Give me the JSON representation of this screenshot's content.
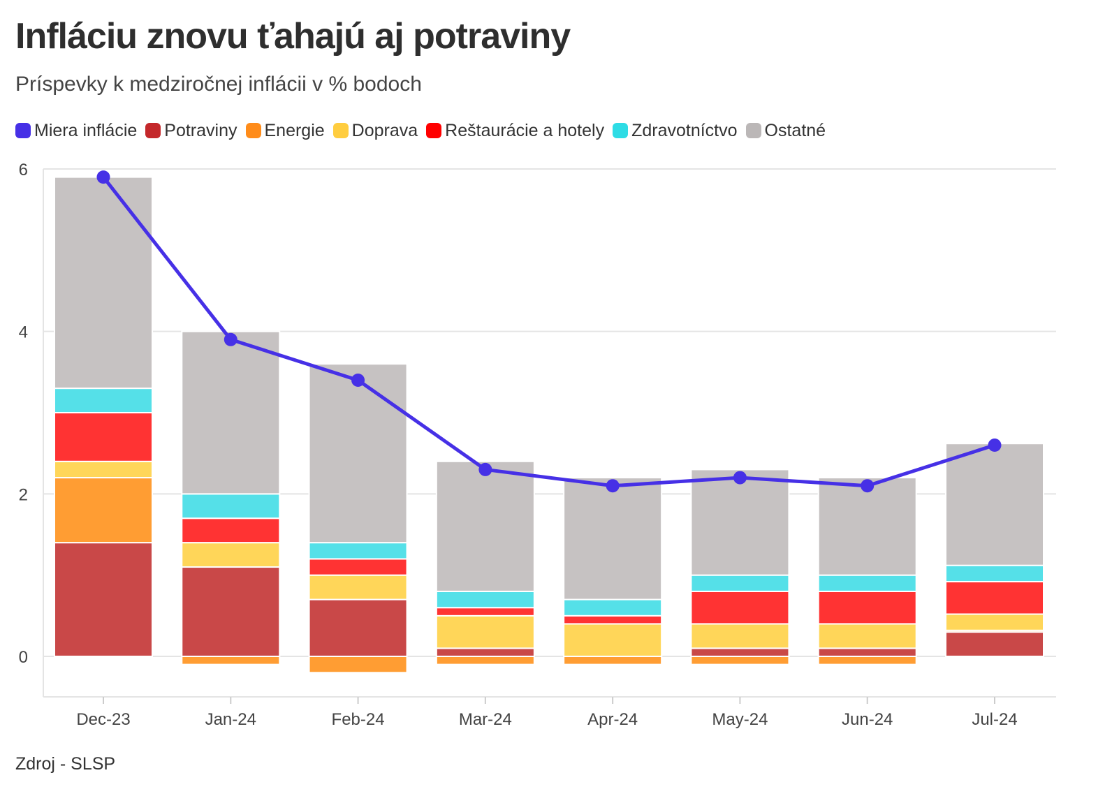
{
  "header": {
    "title": "Infláciu znovu ťahajú aj potraviny",
    "subtitle": "Príspevky k medziročnej inflácii v % bodoch"
  },
  "legend": [
    {
      "label": "Miera inflácie",
      "color": "#4630e6"
    },
    {
      "label": "Potraviny",
      "color": "#c4282b"
    },
    {
      "label": "Energie",
      "color": "#ff8c1a"
    },
    {
      "label": "Doprava",
      "color": "#ffcd3f"
    },
    {
      "label": "Reštaurácie a hotely",
      "color": "#ff0000"
    },
    {
      "label": "Zdravotníctvo",
      "color": "#2edce5"
    },
    {
      "label": "Ostatné",
      "color": "#bbb7b7"
    }
  ],
  "chart_data": {
    "type": "bar",
    "stacked": true,
    "title": "Infláciu znovu ťahajú aj potraviny",
    "subtitle": "Príspevky k medziročnej inflácii v % bodoch",
    "categories": [
      "Dec-23",
      "Jan-24",
      "Feb-24",
      "Mar-24",
      "Apr-24",
      "May-24",
      "Jun-24",
      "Jul-24"
    ],
    "ylim": [
      -0.5,
      6
    ],
    "yticks": [
      0,
      2,
      4,
      6
    ],
    "xlabel": "",
    "ylabel": "",
    "grid": true,
    "series": [
      {
        "name": "Potraviny",
        "values": [
          1.4,
          1.1,
          0.7,
          0.1,
          0.0,
          0.1,
          0.1,
          0.3
        ],
        "color": "#c94848"
      },
      {
        "name": "Energie",
        "values": [
          0.8,
          -0.1,
          -0.2,
          -0.1,
          -0.1,
          -0.1,
          -0.1,
          0.02
        ],
        "color": "#ff9d33"
      },
      {
        "name": "Doprava",
        "values": [
          0.2,
          0.3,
          0.3,
          0.4,
          0.4,
          0.3,
          0.3,
          0.2
        ],
        "color": "#ffd659"
      },
      {
        "name": "Reštaurácie a hotely",
        "values": [
          0.6,
          0.3,
          0.2,
          0.1,
          0.1,
          0.4,
          0.4,
          0.4
        ],
        "color": "#ff3333"
      },
      {
        "name": "Zdravotníctvo",
        "values": [
          0.3,
          0.3,
          0.2,
          0.2,
          0.2,
          0.2,
          0.2,
          0.2
        ],
        "color": "#55e0e8"
      },
      {
        "name": "Ostatné",
        "values": [
          2.6,
          2.0,
          2.2,
          1.6,
          1.5,
          1.3,
          1.2,
          1.5
        ],
        "color": "#c6c2c2"
      }
    ],
    "line": {
      "name": "Miera inflácie",
      "values": [
        5.9,
        3.9,
        3.4,
        2.3,
        2.1,
        2.2,
        2.1,
        2.6
      ],
      "color": "#4630e6"
    }
  },
  "footer": {
    "source": "Zdroj - SLSP"
  }
}
